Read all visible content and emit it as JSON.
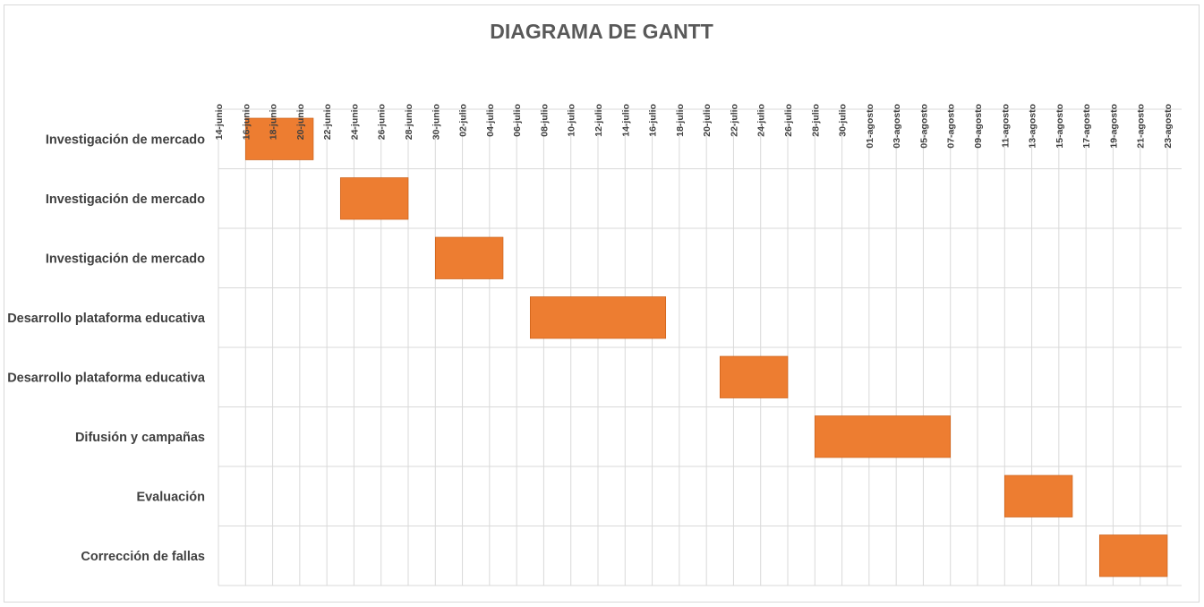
{
  "chart_data": {
    "type": "gantt",
    "title": "DIAGRAMA DE GANTT",
    "xlabel": "",
    "ylabel": "",
    "x_range": [
      "14-junio",
      "23-agosto"
    ],
    "tick_labels": [
      "14-junio",
      "16-junio",
      "18-junio",
      "20-junio",
      "22-junio",
      "24-junio",
      "26-junio",
      "28-junio",
      "30-junio",
      "02-julio",
      "04-julio",
      "06-julio",
      "08-julio",
      "10-julio",
      "12-julio",
      "14-julio",
      "16-julio",
      "18-julio",
      "20-julio",
      "22-julio",
      "24-julio",
      "26-julio",
      "28-julio",
      "30-julio",
      "01-agosto",
      "03-agosto",
      "05-agosto",
      "07-agosto",
      "09-agosto",
      "11-agosto",
      "13-agosto",
      "15-agosto",
      "17-agosto",
      "19-agosto",
      "21-agosto",
      "23-agosto"
    ],
    "grid": true,
    "legend": "none",
    "bar_color": "#ED7D31",
    "tasks": [
      {
        "label": "Investigación de mercado",
        "start": "16-junio",
        "end": "21-junio"
      },
      {
        "label": "Investigación de mercado",
        "start": "23-junio",
        "end": "28-junio"
      },
      {
        "label": "Investigación de mercado",
        "start": "30-junio",
        "end": "05-julio"
      },
      {
        "label": "Desarrollo plataforma educativa",
        "start": "07-julio",
        "end": "17-julio"
      },
      {
        "label": "Desarrollo plataforma educativa",
        "start": "21-julio",
        "end": "26-julio"
      },
      {
        "label": "Difusión y campañas",
        "start": "28-julio",
        "end": "07-agosto"
      },
      {
        "label": "Evaluación",
        "start": "11-agosto",
        "end": "16-agosto"
      },
      {
        "label": "Corrección de fallas",
        "start": "18-agosto",
        "end": "23-agosto"
      }
    ]
  }
}
